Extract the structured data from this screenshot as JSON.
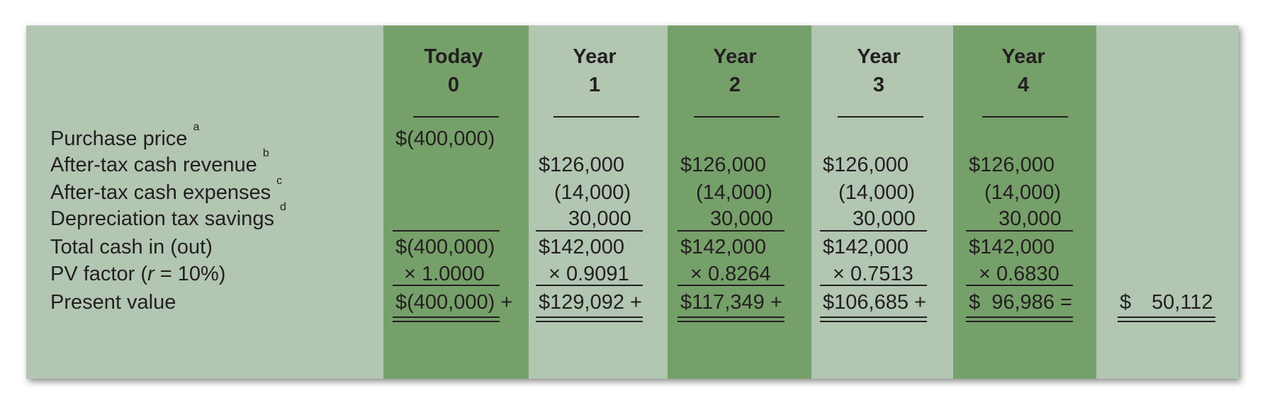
{
  "columns": [
    {
      "header_top": "Today",
      "header_bottom": "0",
      "shade": "#76a06a"
    },
    {
      "header_top": "Year",
      "header_bottom": "1",
      "shade": "#b2c6b2"
    },
    {
      "header_top": "Year",
      "header_bottom": "2",
      "shade": "#76a06a"
    },
    {
      "header_top": "Year",
      "header_bottom": "3",
      "shade": "#b2c6b2"
    },
    {
      "header_top": "Year",
      "header_bottom": "4",
      "shade": "#76a06a"
    }
  ],
  "rows": {
    "purchase_price": {
      "label": "Purchase price",
      "note": "a",
      "values": [
        "$(400,000)",
        "",
        "",
        "",
        ""
      ]
    },
    "after_tax_revenue": {
      "label": "After-tax cash revenue",
      "note": "b",
      "values": [
        "",
        "$126,000",
        "$126,000",
        "$126,000",
        "$126,000"
      ]
    },
    "after_tax_expenses": {
      "label": "After-tax cash expenses",
      "note": "c",
      "values": [
        "",
        "(14,000)",
        "(14,000)",
        "(14,000)",
        "(14,000)"
      ]
    },
    "depreciation_tax_savings": {
      "label": "Depreciation tax savings",
      "note": "d",
      "values": [
        "",
        "30,000",
        "30,000",
        "30,000",
        "30,000"
      ]
    },
    "total_cash": {
      "label": "Total cash in (out)",
      "values": [
        "$(400,000)",
        "$142,000",
        "$142,000",
        "$142,000",
        "$142,000"
      ]
    },
    "pv_factor": {
      "label_prefix": "PV factor (",
      "label_var": "r",
      "label_suffix": " = 10%)",
      "values": [
        "× 1.0000",
        "× 0.9091",
        "× 0.8264",
        "× 0.7513",
        "× 0.6830"
      ]
    },
    "present_value": {
      "label": "Present value",
      "values": [
        "$(400,000) +",
        "$129,092 +",
        "$117,349 +",
        "$106,685 +",
        "$  96,986 ="
      ],
      "total_symbol": "$",
      "total_amount": "50,112"
    }
  },
  "colors": {
    "panel": "#b2c6b2",
    "band_dark": "#76a06a",
    "text": "#231f20"
  }
}
